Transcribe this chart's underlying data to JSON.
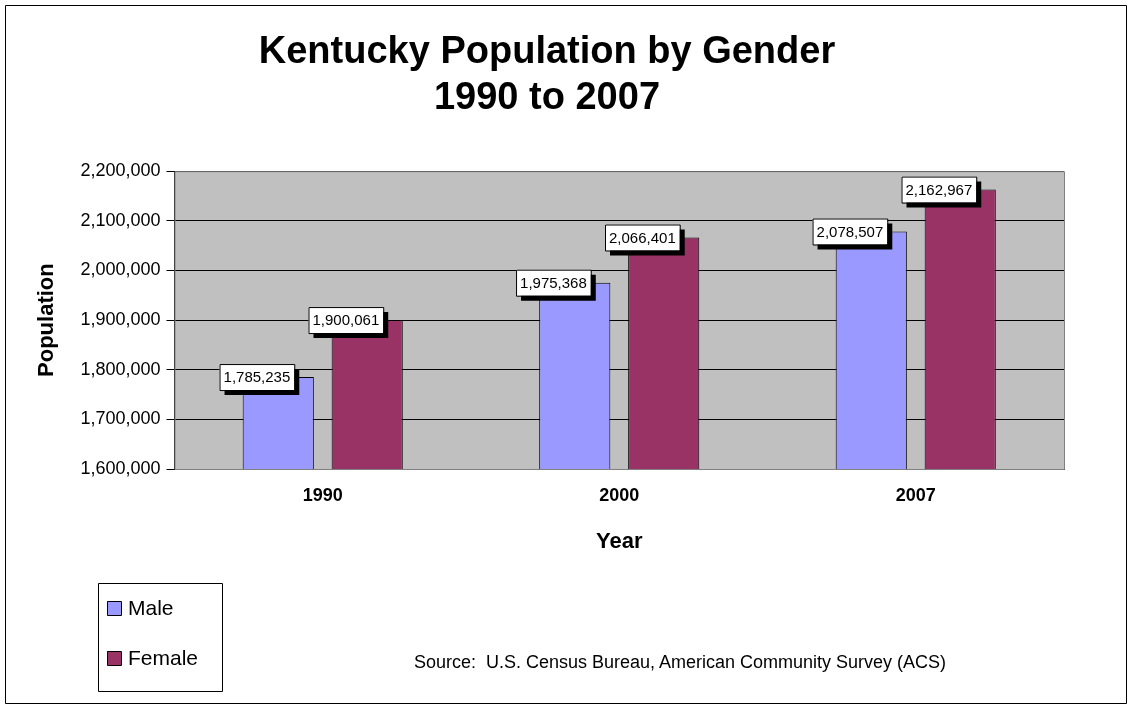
{
  "chart_data": {
    "type": "bar",
    "title": "Kentucky Population by Gender\n1990 to 2007",
    "xlabel": "Year",
    "ylabel": "Population",
    "categories": [
      "1990",
      "2000",
      "2007"
    ],
    "series": [
      {
        "name": "Male",
        "color": "#9999ff",
        "values": [
          1785235,
          1975368,
          2078507
        ],
        "value_labels": [
          "1,785,235",
          "1,975,368",
          "2,078,507"
        ]
      },
      {
        "name": "Female",
        "color": "#993366",
        "values": [
          1900061,
          2066401,
          2162967
        ],
        "value_labels": [
          "1,900,061",
          "2,066,401",
          "2,162,967"
        ]
      }
    ],
    "ylim": [
      1600000,
      2200000
    ],
    "yticks": [
      {
        "value": 1600000,
        "label": "1,600,000"
      },
      {
        "value": 1700000,
        "label": "1,700,000"
      },
      {
        "value": 1800000,
        "label": "1,800,000"
      },
      {
        "value": 1900000,
        "label": "1,900,000"
      },
      {
        "value": 2000000,
        "label": "2,000,000"
      },
      {
        "value": 2100000,
        "label": "2,100,000"
      },
      {
        "value": 2200000,
        "label": "2,200,000"
      }
    ],
    "grid": "y",
    "legend": "bottom left",
    "annotations": [
      "Source:  U.S. Census Bureau, American Community Survey (ACS)"
    ]
  }
}
